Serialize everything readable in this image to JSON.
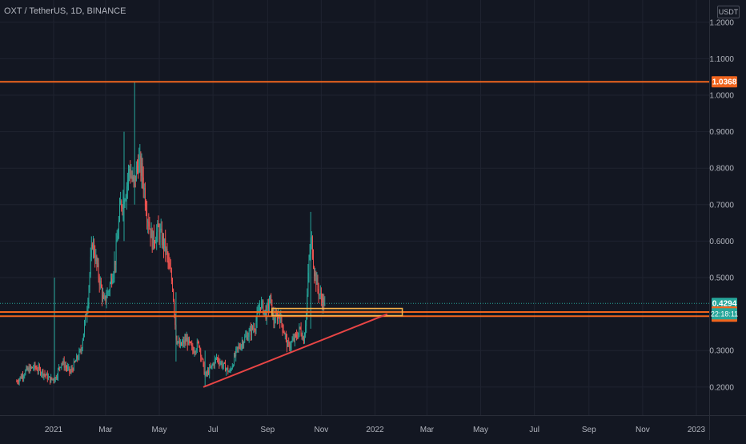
{
  "legend": {
    "text": "OXT / TetherUS, 1D, BINANCE"
  },
  "currency": "USDT",
  "colors": {
    "background": "#131722",
    "grid": "#1f2330",
    "up": "#26a69a",
    "down": "#ef5350",
    "level": "#f0651e",
    "trend": "#e84545",
    "box": "#f7b24a",
    "last_label": "#26a69a"
  },
  "chart_data": {
    "type": "candlestick",
    "symbol": "OXT / TetherUS",
    "interval": "1D",
    "exchange": "BINANCE",
    "y_ticks": [
      {
        "value": 1.2,
        "label": "1.2000"
      },
      {
        "value": 1.1,
        "label": "1.1000"
      },
      {
        "value": 1.0,
        "label": "1.0000"
      },
      {
        "value": 0.9,
        "label": "0.9000"
      },
      {
        "value": 0.8,
        "label": "0.8000"
      },
      {
        "value": 0.7,
        "label": "0.7000"
      },
      {
        "value": 0.6,
        "label": "0.6000"
      },
      {
        "value": 0.5,
        "label": "0.5000"
      },
      {
        "value": 0.3,
        "label": "0.3000"
      },
      {
        "value": 0.2,
        "label": "0.2000"
      }
    ],
    "x_ticks": [
      {
        "date": "2021-01-01",
        "label": "2021"
      },
      {
        "date": "2021-03-01",
        "label": "Mar"
      },
      {
        "date": "2021-05-01",
        "label": "May"
      },
      {
        "date": "2021-07-01",
        "label": "Jul"
      },
      {
        "date": "2021-09-01",
        "label": "Sep"
      },
      {
        "date": "2021-11-01",
        "label": "Nov"
      },
      {
        "date": "2022-01-01",
        "label": "2022"
      },
      {
        "date": "2022-03-01",
        "label": "Mar"
      },
      {
        "date": "2022-05-01",
        "label": "May"
      },
      {
        "date": "2022-07-01",
        "label": "Jul"
      },
      {
        "date": "2022-09-01",
        "label": "Sep"
      },
      {
        "date": "2022-11-01",
        "label": "Nov"
      },
      {
        "date": "2023-01-01",
        "label": "2023"
      }
    ],
    "price_path": [
      [
        "2020-11-20",
        0.215
      ],
      [
        "2020-12-01",
        0.245
      ],
      [
        "2020-12-10",
        0.255
      ],
      [
        "2020-12-20",
        0.24
      ],
      [
        "2020-12-28",
        0.22
      ],
      [
        "2021-01-03",
        0.225
      ],
      [
        "2021-01-10",
        0.27
      ],
      [
        "2021-01-20",
        0.24
      ],
      [
        "2021-02-01",
        0.3
      ],
      [
        "2021-02-08",
        0.42
      ],
      [
        "2021-02-14",
        0.6
      ],
      [
        "2021-02-20",
        0.52
      ],
      [
        "2021-02-27",
        0.43
      ],
      [
        "2021-03-05",
        0.47
      ],
      [
        "2021-03-12",
        0.55
      ],
      [
        "2021-03-18",
        0.7
      ],
      [
        "2021-03-24",
        0.74
      ],
      [
        "2021-03-28",
        0.8
      ],
      [
        "2021-04-02",
        0.75
      ],
      [
        "2021-04-07",
        0.82
      ],
      [
        "2021-04-12",
        0.78
      ],
      [
        "2021-04-17",
        0.68
      ],
      [
        "2021-04-23",
        0.6
      ],
      [
        "2021-04-30",
        0.63
      ],
      [
        "2021-05-08",
        0.58
      ],
      [
        "2021-05-12",
        0.53
      ],
      [
        "2021-05-16",
        0.48
      ],
      [
        "2021-05-20",
        0.34
      ],
      [
        "2021-05-24",
        0.31
      ],
      [
        "2021-06-01",
        0.33
      ],
      [
        "2021-06-08",
        0.3
      ],
      [
        "2021-06-15",
        0.32
      ],
      [
        "2021-06-22",
        0.23
      ],
      [
        "2021-06-28",
        0.25
      ],
      [
        "2021-07-05",
        0.28
      ],
      [
        "2021-07-12",
        0.26
      ],
      [
        "2021-07-20",
        0.24
      ],
      [
        "2021-07-28",
        0.3
      ],
      [
        "2021-08-05",
        0.33
      ],
      [
        "2021-08-12",
        0.35
      ],
      [
        "2021-08-18",
        0.37
      ],
      [
        "2021-08-24",
        0.43
      ],
      [
        "2021-08-30",
        0.4
      ],
      [
        "2021-09-04",
        0.44
      ],
      [
        "2021-09-08",
        0.38
      ],
      [
        "2021-09-14",
        0.4
      ],
      [
        "2021-09-20",
        0.35
      ],
      [
        "2021-09-24",
        0.31
      ],
      [
        "2021-09-28",
        0.32
      ],
      [
        "2021-10-04",
        0.34
      ],
      [
        "2021-10-08",
        0.36
      ],
      [
        "2021-10-12",
        0.33
      ],
      [
        "2021-10-15",
        0.4
      ],
      [
        "2021-10-18",
        0.55
      ],
      [
        "2021-10-21",
        0.6
      ],
      [
        "2021-10-24",
        0.52
      ],
      [
        "2021-10-28",
        0.47
      ],
      [
        "2021-11-01",
        0.44
      ],
      [
        "2021-11-05",
        0.4294
      ]
    ],
    "spikes": [
      {
        "date": "2021-01-02",
        "high": 0.5,
        "low": 0.21
      },
      {
        "date": "2021-03-22",
        "high": 0.9,
        "low": 0.6
      },
      {
        "date": "2021-04-03",
        "high": 1.0368,
        "low": 0.7
      },
      {
        "date": "2021-05-20",
        "high": 0.46,
        "low": 0.27
      },
      {
        "date": "2021-06-22",
        "high": 0.3,
        "low": 0.2
      },
      {
        "date": "2021-10-20",
        "high": 0.68,
        "low": 0.36
      }
    ],
    "horizontal_levels": [
      1.0368,
      0.4056,
      0.3941
    ],
    "last_price": 0.4294,
    "price_labels": [
      {
        "value": 1.0368,
        "label": "1.0368",
        "kind": "level"
      },
      {
        "value": 0.4294,
        "label": "0.4294",
        "kind": "last"
      },
      {
        "value": 0.4056,
        "label": "0.4056",
        "kind": "level"
      },
      {
        "value": 0.3941,
        "label": "0.3941",
        "kind": "level"
      }
    ],
    "countdown": "22:18:11",
    "trendline": {
      "from": {
        "date": "2021-06-20",
        "value": 0.2
      },
      "to": {
        "date": "2022-01-15",
        "value": 0.4
      }
    },
    "box": {
      "from_date": "2021-09-06",
      "to_date": "2022-02-01",
      "top": 0.4155,
      "bottom": 0.3955
    }
  }
}
